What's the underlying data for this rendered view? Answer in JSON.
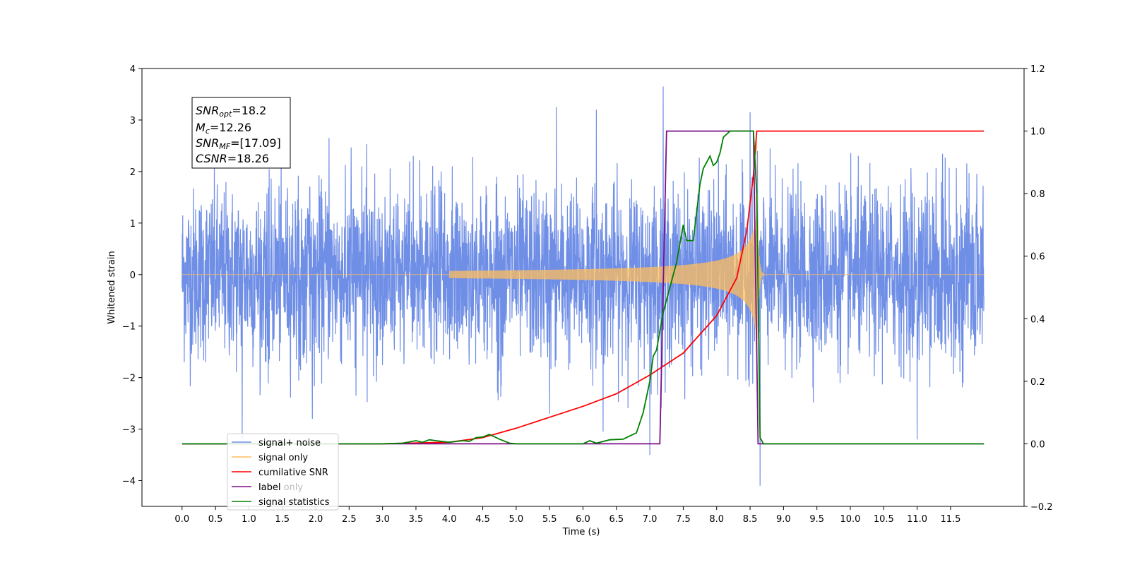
{
  "chart_data": {
    "type": "line",
    "xlabel": "Time (s)",
    "ylabel": "Whitened strain",
    "xlim": [
      -0.6,
      12.6
    ],
    "ylim": [
      -4.5,
      4.0
    ],
    "y2lim": [
      -0.2,
      1.2
    ],
    "x_ticks": [
      "0.0",
      "0.5",
      "1.0",
      "1.5",
      "2.0",
      "2.5",
      "3.0",
      "3.5",
      "4.0",
      "4.5",
      "5.0",
      "5.5",
      "6.0",
      "6.5",
      "7.0",
      "7.5",
      "8.0",
      "8.5",
      "9.0",
      "9.5",
      "10.0",
      "10.5",
      "11.0",
      "11.5"
    ],
    "y_ticks": [
      "4",
      "3",
      "2",
      "1",
      "0",
      "−1",
      "−2",
      "−3",
      "−4"
    ],
    "y2_ticks": [
      "1.2",
      "1.0",
      "0.8",
      "0.6",
      "0.4",
      "0.2",
      "0.0",
      "−0.2"
    ],
    "annotation": {
      "snr_opt": {
        "sym": "SNR",
        "sub": "opt",
        "value": "=18.2"
      },
      "mc": {
        "sym": "M",
        "sub": "c",
        "value": "=12.26"
      },
      "snr_mf": {
        "sym": "SNR",
        "sub": "MF",
        "value": "=[17.09]"
      },
      "csnr": {
        "sym": "CSNR",
        "sub": "",
        "value": "=18.26"
      }
    },
    "legend_placement": "lower-left",
    "legend": [
      "signal+ noise",
      "signal only",
      "cumilative SNR",
      "label",
      "signal statistics"
    ],
    "occluded_legend_text": "label only",
    "colors": {
      "noise": "#6f8ee6",
      "signal": "#ffbe5c",
      "csnr": "#ff0000",
      "label": "#7b0f87",
      "stats": "#008000"
    },
    "series": [
      {
        "name": "signal+ noise",
        "axis": "left",
        "description_points": {
          "x_range": [
            0.0,
            12.0
          ],
          "typical_amplitude": 1.5,
          "peaks": [
            [
              0.9,
              -3.2
            ],
            [
              1.95,
              -2.8
            ],
            [
              2.2,
              2.65
            ],
            [
              5.6,
              3.25
            ],
            [
              5.5,
              -2.7
            ],
            [
              6.2,
              3.2
            ],
            [
              6.3,
              -3.05
            ],
            [
              7.0,
              -3.5
            ],
            [
              7.2,
              3.65
            ],
            [
              8.5,
              3.15
            ],
            [
              8.65,
              -4.1
            ],
            [
              11.0,
              -3.2
            ]
          ]
        }
      },
      {
        "name": "signal only",
        "axis": "left",
        "chirp": {
          "t_start": 4.0,
          "t_merger": 8.6,
          "t_ringdown_end": 8.72,
          "peak_amplitude": 2.6
        }
      },
      {
        "name": "cumilative SNR",
        "axis": "right",
        "x": [
          0.0,
          3.0,
          4.0,
          4.5,
          5.0,
          5.5,
          6.0,
          6.5,
          7.0,
          7.5,
          8.0,
          8.3,
          8.45,
          8.55,
          8.6,
          12.0
        ],
        "values": [
          0.0,
          0.0,
          0.005,
          0.02,
          0.05,
          0.085,
          0.12,
          0.16,
          0.22,
          0.29,
          0.41,
          0.53,
          0.68,
          0.86,
          1.0,
          1.0
        ]
      },
      {
        "name": "label",
        "axis": "right",
        "x": [
          0.0,
          7.15,
          7.25,
          8.55,
          8.62,
          12.0
        ],
        "values": [
          0.0,
          0.0,
          1.0,
          1.0,
          0.0,
          0.0
        ]
      },
      {
        "name": "signal statistics",
        "axis": "right",
        "x": [
          0.0,
          3.0,
          3.3,
          3.5,
          3.6,
          3.7,
          3.8,
          4.0,
          4.2,
          4.3,
          4.4,
          4.5,
          4.6,
          4.75,
          4.9,
          5.0,
          6.0,
          6.1,
          6.2,
          6.4,
          6.6,
          6.8,
          6.9,
          7.0,
          7.05,
          7.1,
          7.2,
          7.3,
          7.4,
          7.5,
          7.55,
          7.65,
          7.75,
          7.8,
          7.9,
          7.95,
          8.0,
          8.05,
          8.1,
          8.2,
          8.55,
          8.6,
          8.65,
          8.7,
          12.0
        ],
        "values": [
          0.0,
          0.0,
          0.002,
          0.01,
          0.005,
          0.013,
          0.01,
          0.005,
          0.01,
          0.008,
          0.02,
          0.022,
          0.03,
          0.015,
          0.002,
          0.0,
          0.0,
          0.01,
          0.002,
          0.013,
          0.015,
          0.035,
          0.1,
          0.2,
          0.28,
          0.3,
          0.42,
          0.5,
          0.58,
          0.7,
          0.65,
          0.65,
          0.83,
          0.88,
          0.92,
          0.89,
          0.9,
          0.93,
          0.98,
          1.0,
          1.0,
          0.8,
          0.02,
          0.0,
          0.0
        ]
      }
    ]
  }
}
